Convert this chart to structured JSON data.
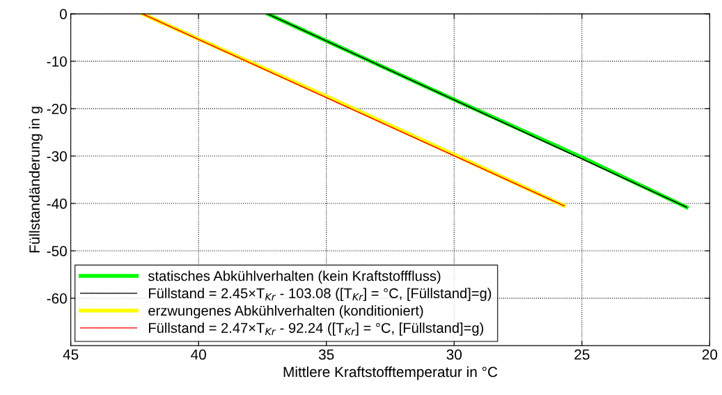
{
  "chart_data": {
    "type": "line",
    "xlabel": "Mittlere Kraftstofftemperatur in °C",
    "ylabel": "Füllstandänderung in g",
    "xlim": [
      45,
      20
    ],
    "xticks": [
      45,
      40,
      35,
      30,
      25,
      20
    ],
    "ylim": [
      -70,
      0
    ],
    "yticks": [
      {
        "value": 0,
        "label": "0"
      },
      {
        "value": -10,
        "label": "-10"
      },
      {
        "value": -20,
        "label": "-20"
      },
      {
        "value": -30,
        "label": "-30"
      },
      {
        "value": -40,
        "label": "-40"
      },
      {
        "value": -50,
        "label": "-50"
      },
      {
        "value": -60,
        "label": "-60"
      }
    ],
    "grid": true,
    "legend": "bottom left",
    "marker": "none",
    "series": [
      {
        "name": "statisches Abkühlverhalten (kein Kraftstofffluss)",
        "color": "#00ff00",
        "line_style": "solid",
        "x": [
          37.3,
          30,
          25,
          20.9
        ],
        "values": [
          0,
          -18.1,
          -30.3,
          -40.8
        ]
      },
      {
        "name": "Füllstand = 2.45×T$_{Kr}$ - 103.08 ([T$_{Kr}$] = °C, [Füllstand]=g)",
        "color": "#000000",
        "line_style": "dotted",
        "x": [
          37.3,
          20.9
        ],
        "values": [
          0,
          -40.8
        ]
      },
      {
        "name": "erzwungenes Abkühlverhalten (konditioniert)",
        "color": "#ffff00",
        "line_style": "solid",
        "x": [
          42.2,
          35,
          30,
          25.7
        ],
        "values": [
          0,
          -17.4,
          -29.7,
          -40.5
        ]
      },
      {
        "name": "Füllstand = 2.47×T$_{Kr}$ - 92.24 ([T$_{Kr}$] = °C, [Füllstand]=g)",
        "color": "#ff0000",
        "line_style": "dotted",
        "x": [
          42.2,
          25.7
        ],
        "values": [
          0,
          -40.5
        ]
      }
    ]
  }
}
